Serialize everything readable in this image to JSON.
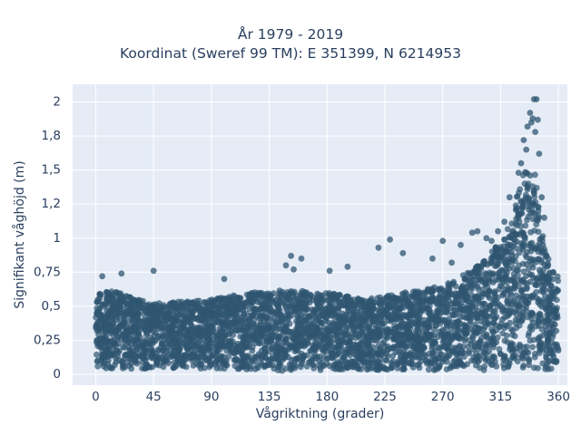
{
  "chart_data": {
    "type": "scatter",
    "title": "År 1979 - 2019",
    "subtitle": "Koordinat (Sweref 99 TM): E 351399, N 6214953",
    "xlabel": "Vågriktning (grader)",
    "ylabel": "Signifikant våghöjd (m)",
    "xlim": [
      -18,
      367
    ],
    "ylim": [
      -0.08,
      2.13
    ],
    "x_ticks": [
      0,
      45,
      90,
      135,
      180,
      225,
      270,
      315,
      360
    ],
    "x_tick_labels": [
      "0",
      "45",
      "90",
      "135",
      "180",
      "225",
      "270",
      "315",
      "360"
    ],
    "y_ticks": [
      0,
      0.25,
      0.5,
      0.75,
      1,
      1.25,
      1.5,
      1.75,
      2
    ],
    "y_tick_labels": [
      "0",
      "0,25",
      "0,5",
      "0,75",
      "1",
      "1,2",
      "1,5",
      "1,8",
      "2"
    ],
    "grid": true,
    "marker_color": "#2f5670",
    "background_color": "#e5ecf6",
    "envelope": {
      "direction_deg": [
        0,
        20,
        45,
        90,
        120,
        150,
        180,
        210,
        240,
        270,
        290,
        300,
        310,
        320,
        325,
        330,
        335,
        338,
        342,
        345,
        350,
        355,
        360
      ],
      "min_height_m": [
        0.04,
        0.04,
        0.04,
        0.04,
        0.03,
        0.02,
        0.03,
        0.03,
        0.03,
        0.03,
        0.03,
        0.03,
        0.03,
        0.03,
        0.03,
        0.03,
        0.03,
        0.03,
        0.03,
        0.03,
        0.03,
        0.03,
        0.04
      ],
      "dense_max_height_m": [
        0.62,
        0.6,
        0.52,
        0.55,
        0.6,
        0.62,
        0.6,
        0.55,
        0.6,
        0.65,
        0.75,
        0.82,
        0.92,
        1.05,
        1.2,
        1.4,
        1.55,
        1.6,
        1.5,
        1.2,
        0.9,
        0.78,
        0.72
      ]
    },
    "highlight_points": [
      {
        "x": 341,
        "y": 2.02
      },
      {
        "x": 343,
        "y": 2.02
      },
      {
        "x": 338,
        "y": 1.92
      },
      {
        "x": 340,
        "y": 1.88
      },
      {
        "x": 344,
        "y": 1.87
      },
      {
        "x": 336,
        "y": 1.82
      },
      {
        "x": 339,
        "y": 1.85
      },
      {
        "x": 333,
        "y": 1.72
      },
      {
        "x": 342,
        "y": 1.78
      },
      {
        "x": 335,
        "y": 1.65
      },
      {
        "x": 331,
        "y": 1.55
      },
      {
        "x": 345,
        "y": 1.62
      },
      {
        "x": 329,
        "y": 1.48
      },
      {
        "x": 322,
        "y": 1.3
      },
      {
        "x": 318,
        "y": 1.12
      },
      {
        "x": 313,
        "y": 1.05
      },
      {
        "x": 308,
        "y": 0.98
      },
      {
        "x": 297,
        "y": 1.05
      },
      {
        "x": 293,
        "y": 1.04
      },
      {
        "x": 304,
        "y": 1.0
      },
      {
        "x": 284,
        "y": 0.95
      },
      {
        "x": 270,
        "y": 0.98
      },
      {
        "x": 229,
        "y": 0.99
      },
      {
        "x": 220,
        "y": 0.93
      },
      {
        "x": 239,
        "y": 0.89
      },
      {
        "x": 262,
        "y": 0.85
      },
      {
        "x": 277,
        "y": 0.82
      },
      {
        "x": 152,
        "y": 0.87
      },
      {
        "x": 160,
        "y": 0.85
      },
      {
        "x": 148,
        "y": 0.8
      },
      {
        "x": 154,
        "y": 0.77
      },
      {
        "x": 196,
        "y": 0.79
      },
      {
        "x": 182,
        "y": 0.76
      },
      {
        "x": 45,
        "y": 0.76
      },
      {
        "x": 20,
        "y": 0.74
      },
      {
        "x": 5,
        "y": 0.72
      },
      {
        "x": 100,
        "y": 0.7
      },
      {
        "x": 352,
        "y": 0.8
      },
      {
        "x": 356,
        "y": 0.75
      },
      {
        "x": 348,
        "y": 0.95
      },
      {
        "x": 349,
        "y": 1.15
      },
      {
        "x": 347,
        "y": 1.3
      }
    ]
  }
}
